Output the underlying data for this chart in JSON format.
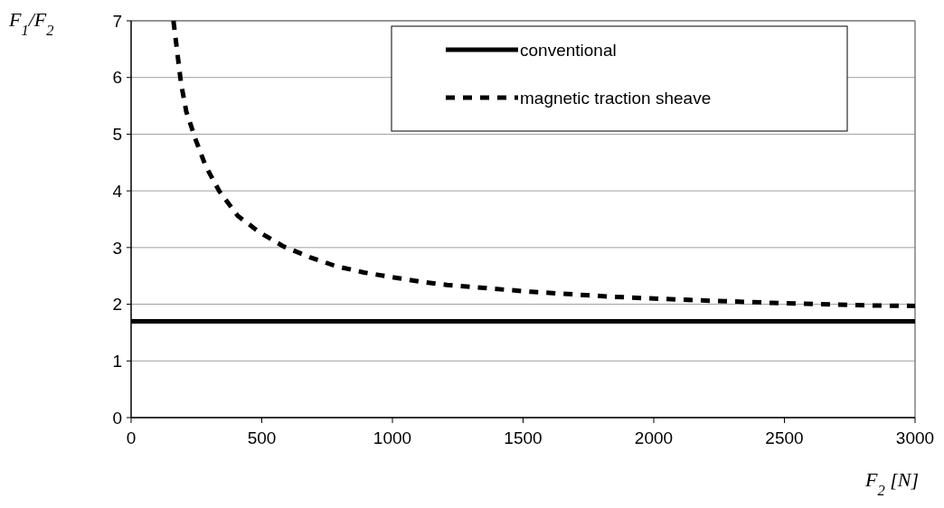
{
  "chart_data": {
    "type": "line",
    "xlabel": "F$_{2}$ [N]",
    "ylabel": "F$_{1}$/F$_{2}$",
    "xlim": [
      0,
      3000
    ],
    "xticks": [
      0,
      500,
      1000,
      1500,
      2000,
      2500,
      3000
    ],
    "ylim": [
      0,
      7
    ],
    "yticks": [
      0,
      1,
      2,
      3,
      4,
      5,
      6,
      7
    ],
    "grid": "y",
    "legend": "top right",
    "series": [
      {
        "name": "conventional",
        "color": "#000000",
        "line_style": "solid",
        "x": [
          0,
          3000
        ],
        "values": [
          1.7,
          1.7
        ]
      },
      {
        "name": "magnetic traction sheave",
        "color": "#000000",
        "line_style": "dashed",
        "x": [
          162,
          177,
          191,
          211,
          248,
          285,
          338,
          408,
          491,
          583,
          684,
          785,
          891,
          995,
          1103,
          1209,
          1529,
          1848,
          2168,
          2487,
          2810,
          3000
        ],
        "values": [
          7.0,
          6.43,
          5.9,
          5.4,
          4.89,
          4.44,
          3.99,
          3.56,
          3.27,
          3.02,
          2.83,
          2.67,
          2.56,
          2.48,
          2.4,
          2.34,
          2.22,
          2.13,
          2.07,
          2.02,
          1.98,
          1.97
        ]
      }
    ]
  }
}
